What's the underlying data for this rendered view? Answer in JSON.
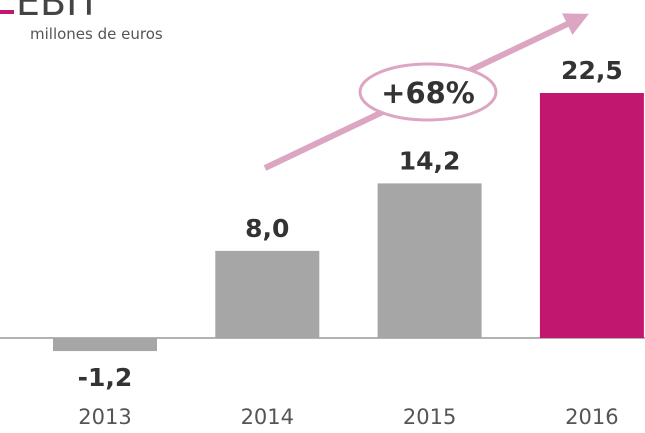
{
  "chart_data": {
    "type": "bar",
    "title": "EBIT",
    "subtitle": "millones de euros",
    "categories": [
      "2013",
      "2014",
      "2015",
      "2016"
    ],
    "values": [
      -1.2,
      8.0,
      14.2,
      22.5
    ],
    "value_labels": [
      "-1,2",
      "8,0",
      "14,2",
      "22,5"
    ],
    "colors": [
      "#a6a6a6",
      "#a6a6a6",
      "#a6a6a6",
      "#c2176e"
    ],
    "annotation": "+68%"
  }
}
